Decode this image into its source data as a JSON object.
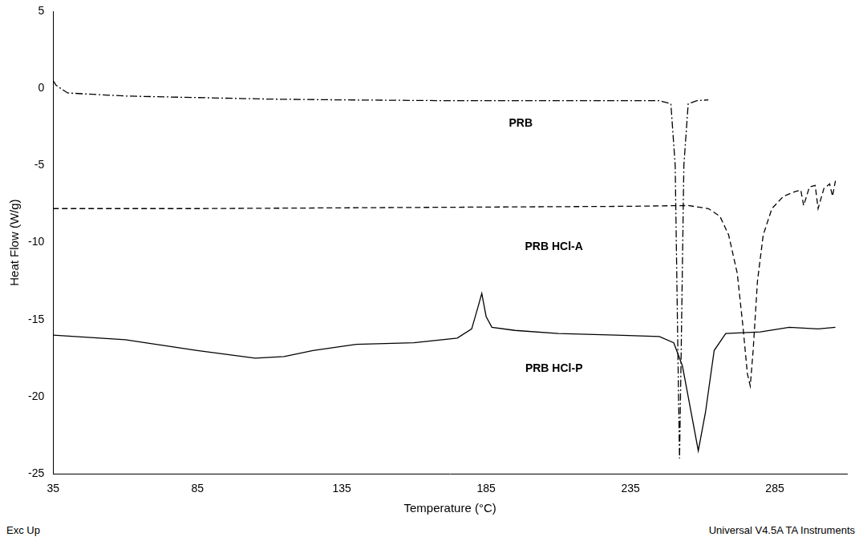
{
  "chart_data": {
    "type": "line",
    "x_label": "Temperature (°C)",
    "y_label": "Heat Flow (W/g)",
    "footer_left": "Exc Up",
    "footer_right": "Universal V4.5A TA Instruments",
    "xlim": [
      35,
      310
    ],
    "xticks": [
      35,
      85,
      135,
      185,
      235,
      285
    ],
    "ylim": [
      -25,
      5
    ],
    "yticks": [
      -25,
      -20,
      -15,
      -10,
      -5,
      0,
      5
    ],
    "grid": false,
    "series": [
      {
        "name": "PRB",
        "color": "#000000",
        "line_style": "dashdot",
        "marker": "none",
        "x": [
          35,
          36,
          40,
          60,
          85,
          110,
          135,
          170,
          200,
          230,
          245,
          249,
          250.5,
          251.5,
          252,
          252.5,
          253.5,
          255,
          258,
          262
        ],
        "values": [
          0.5,
          0.2,
          -0.3,
          -0.5,
          -0.6,
          -0.7,
          -0.75,
          -0.8,
          -0.8,
          -0.8,
          -0.8,
          -1.0,
          -5,
          -18,
          -24,
          -18,
          -5,
          -1.0,
          -0.8,
          -0.75
        ]
      },
      {
        "name": "PRB HCl-A",
        "color": "#000000",
        "line_style": "dashed",
        "marker": "none",
        "x": [
          35,
          85,
          135,
          185,
          235,
          255,
          262,
          266,
          269,
          272,
          274,
          275.5,
          276.5,
          277.5,
          279,
          281,
          284,
          288,
          292,
          294,
          295,
          297,
          299,
          300,
          302,
          304,
          305,
          306
        ],
        "values": [
          -7.8,
          -7.8,
          -7.75,
          -7.7,
          -7.65,
          -7.6,
          -7.8,
          -8.3,
          -9.5,
          -12,
          -15.5,
          -18.5,
          -19.3,
          -17,
          -12.5,
          -9.5,
          -7.8,
          -7.0,
          -6.7,
          -6.6,
          -7.6,
          -6.4,
          -6.3,
          -7.8,
          -6.5,
          -6.2,
          -7.0,
          -6.0
        ]
      },
      {
        "name": "PRB HCl-P",
        "color": "#000000",
        "line_style": "solid",
        "marker": "none",
        "x": [
          35,
          60,
          85,
          105,
          115,
          125,
          140,
          160,
          175,
          180,
          182,
          183.5,
          185,
          187,
          195,
          210,
          230,
          245,
          250,
          253,
          256,
          258.5,
          261,
          264,
          268,
          280,
          290,
          300,
          306
        ],
        "values": [
          -16,
          -16.3,
          -17.0,
          -17.5,
          -17.4,
          -17.0,
          -16.6,
          -16.5,
          -16.2,
          -15.6,
          -14.3,
          -13.3,
          -14.8,
          -15.5,
          -15.7,
          -15.9,
          -16.0,
          -16.1,
          -16.5,
          -18,
          -21,
          -23.5,
          -21,
          -17,
          -15.9,
          -15.8,
          -15.5,
          -15.6,
          -15.5
        ]
      }
    ],
    "annotations": [
      {
        "text": "PRB",
        "x": 197,
        "y": -2.3
      },
      {
        "text": "PRB HCl-A",
        "x": 208.5,
        "y": -10.3
      },
      {
        "text": "PRB HCl-P",
        "x": 208.5,
        "y": -18.2
      }
    ]
  }
}
